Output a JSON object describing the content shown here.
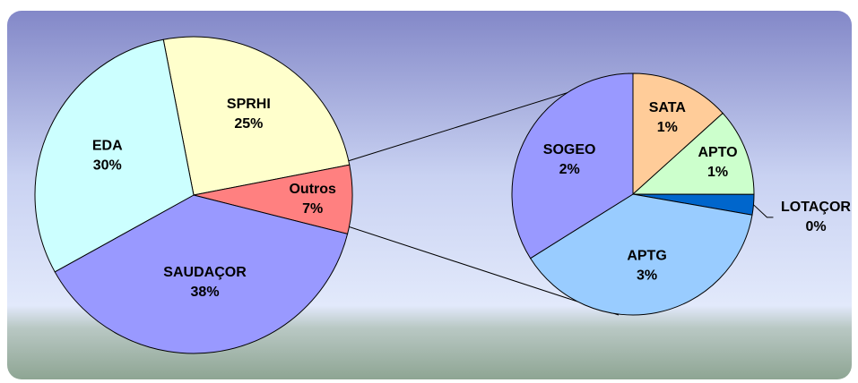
{
  "chart_data": [
    {
      "type": "pie",
      "categories": [
        "SPRHI",
        "Outros",
        "SAUDAÇOR",
        "EDA"
      ],
      "values": [
        25,
        7,
        38,
        30
      ],
      "value_labels": [
        "25%",
        "7%",
        "38%",
        "30%"
      ],
      "colors": [
        "#ffffcc",
        "#ff8080",
        "#9999ff",
        "#ccffff"
      ]
    },
    {
      "type": "pie",
      "categories": [
        "SATA",
        "APTO",
        "LOTAÇOR",
        "APTG",
        "SOGEO"
      ],
      "values": [
        0.93,
        0.82,
        0.19,
        2.68,
        2.37
      ],
      "value_labels": [
        "1%",
        "1%",
        "0%",
        "3%",
        "2%"
      ],
      "colors": [
        "#ffcc99",
        "#ccffcc",
        "#0066cc",
        "#99ccff",
        "#9999ff"
      ]
    }
  ]
}
